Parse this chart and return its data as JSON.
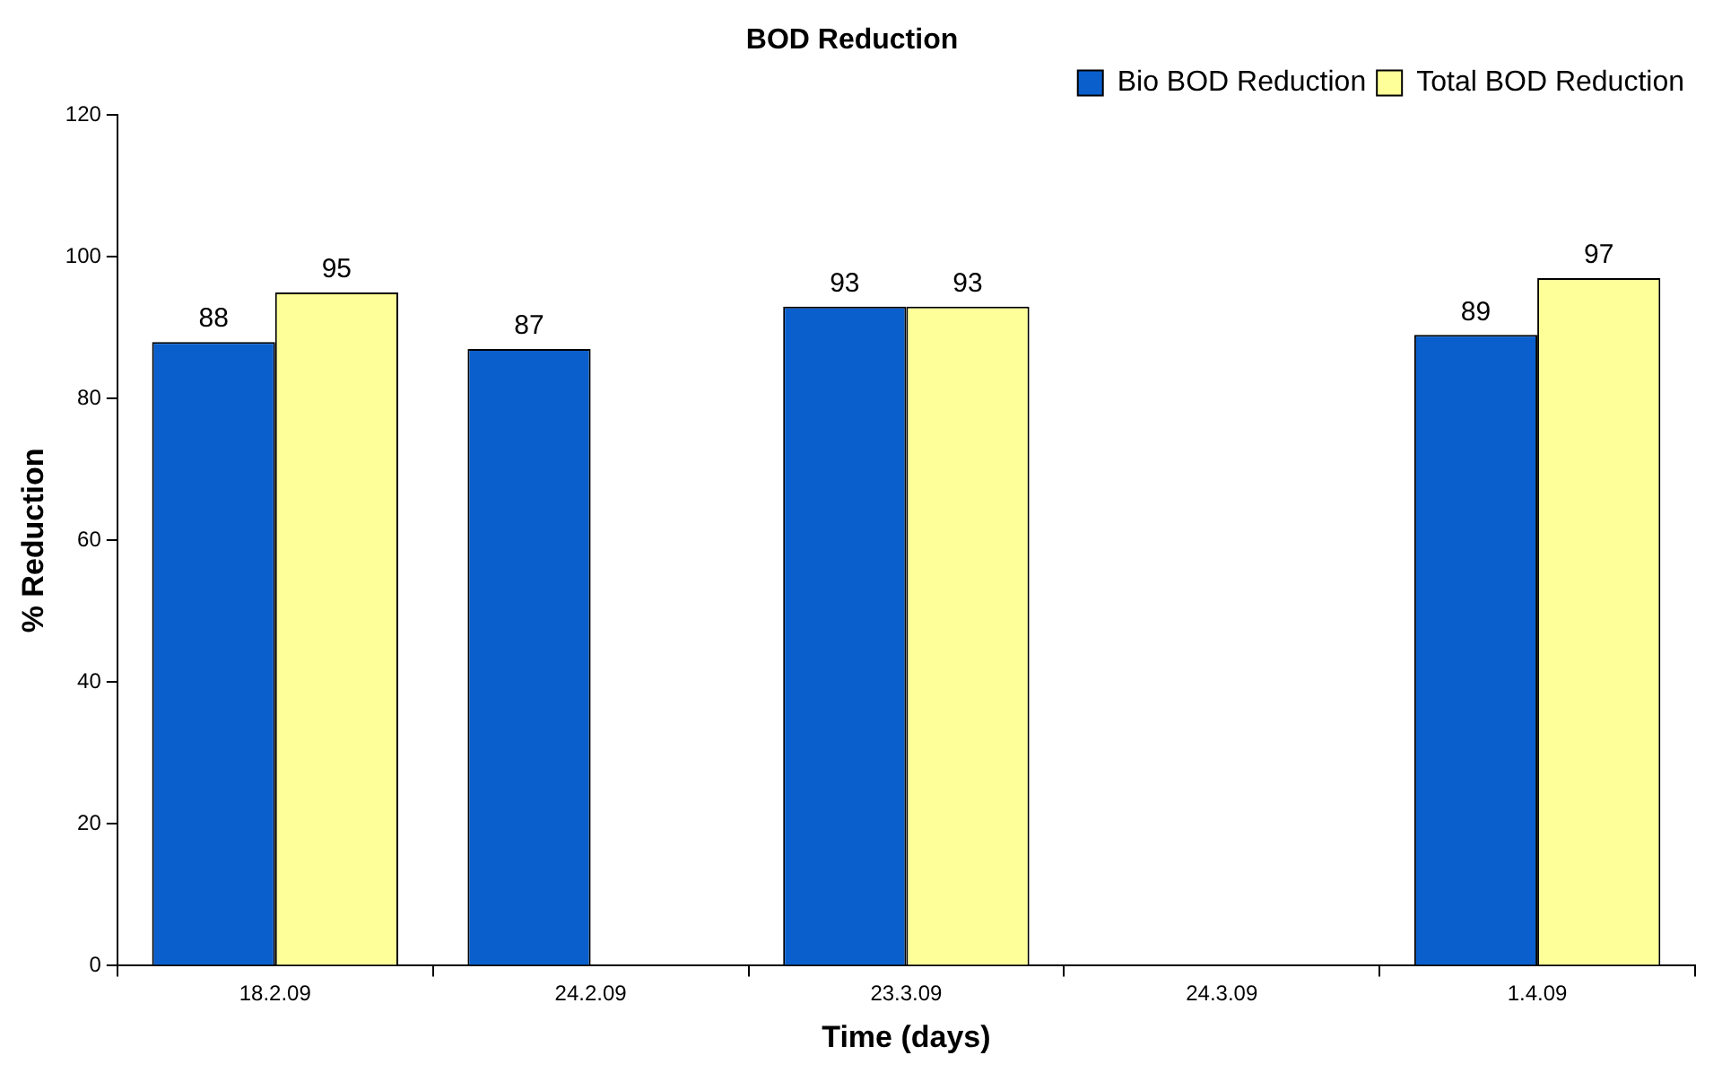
{
  "chart_data": {
    "type": "bar",
    "title": "BOD Reduction",
    "xlabel": "Time (days)",
    "ylabel": "% Reduction",
    "categories": [
      "18.2.09",
      "24.2.09",
      "23.3.09",
      "24.3.09",
      "1.4.09"
    ],
    "series": [
      {
        "name": "Bio BOD Reduction",
        "color": "#0a5fcc",
        "values": [
          88,
          87,
          93,
          null,
          89
        ]
      },
      {
        "name": "Total BOD Reduction",
        "color": "#ffff99",
        "values": [
          95,
          null,
          93,
          null,
          97
        ]
      }
    ],
    "ylim": [
      0,
      120
    ],
    "yticks": [
      0,
      20,
      40,
      60,
      80,
      100,
      120
    ],
    "grid": false,
    "legend": "top right",
    "data_labels": true
  }
}
